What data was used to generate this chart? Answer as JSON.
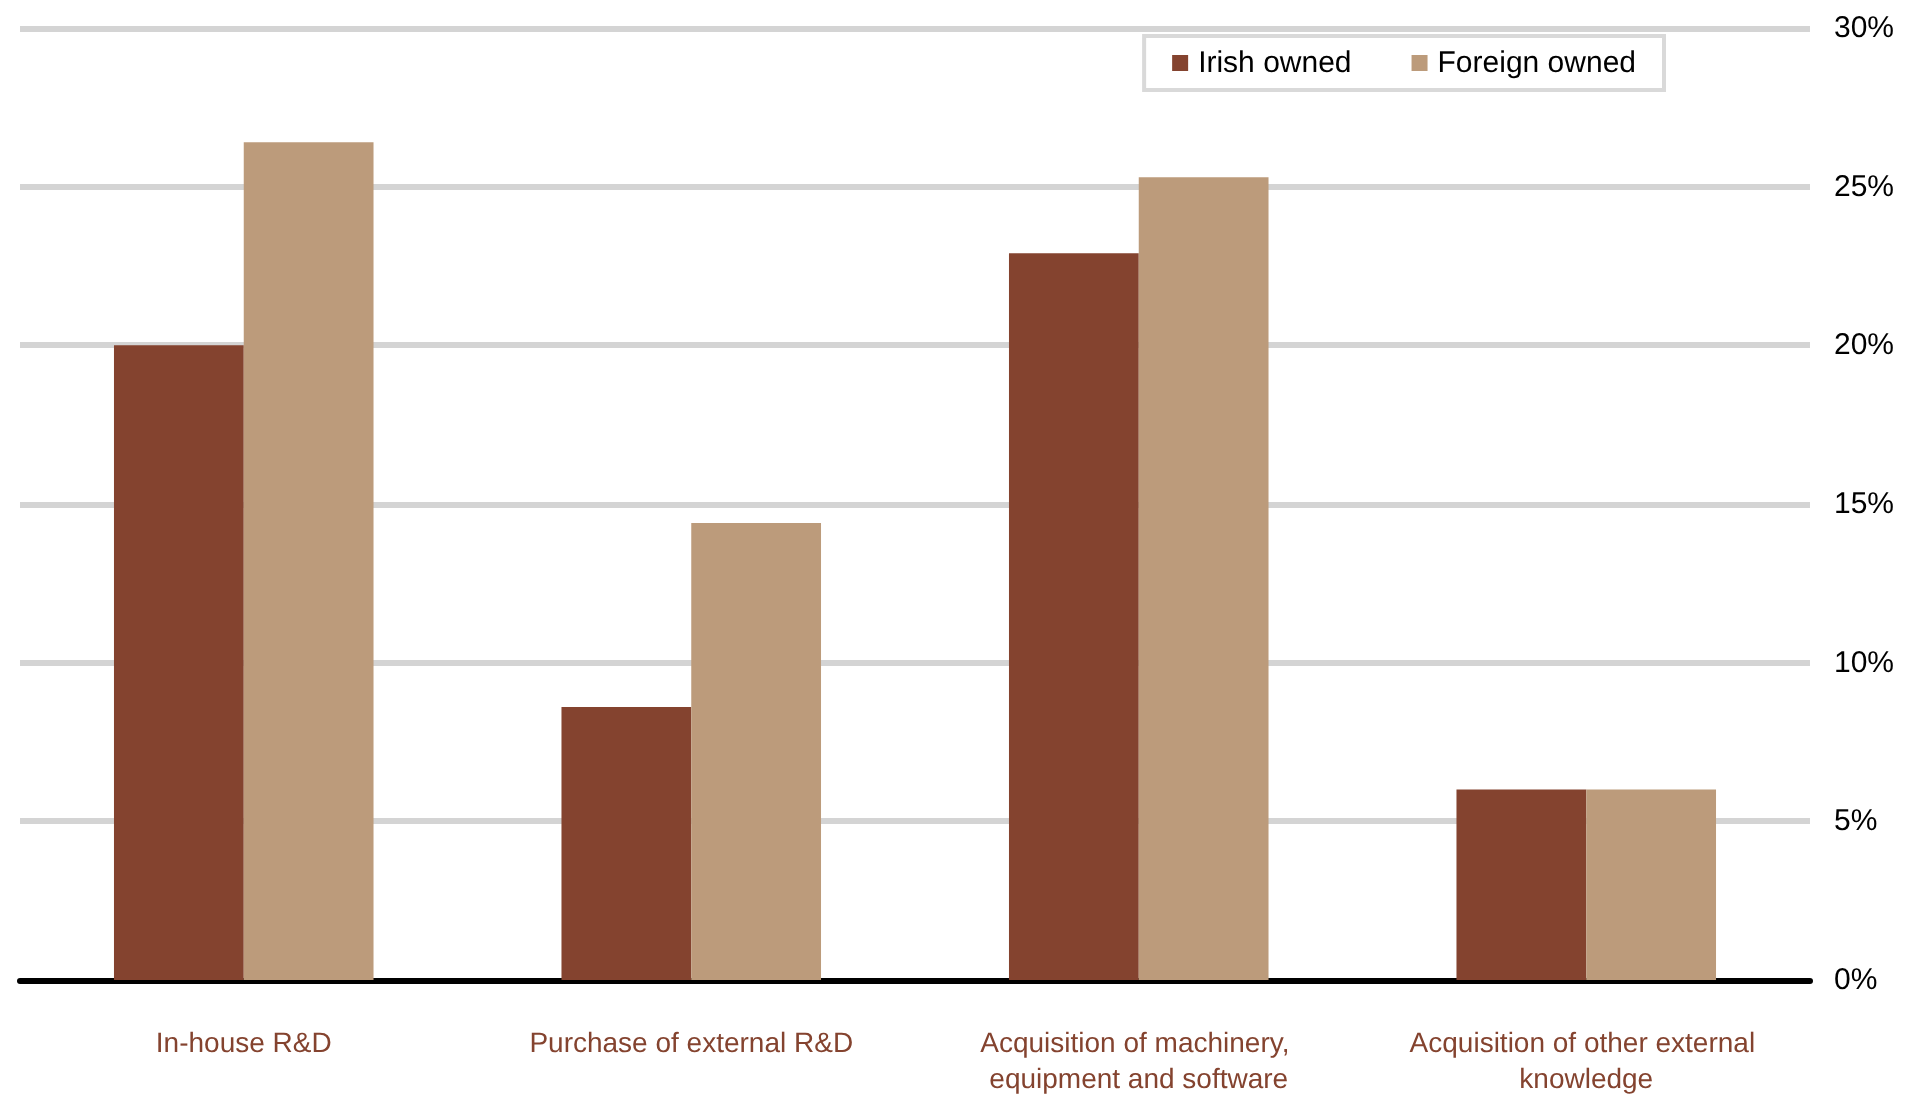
{
  "chart_data": {
    "type": "bar",
    "categories": [
      "In-house R&D",
      "Purchase of external R&D",
      "Acquisition of machinery, equipment and software",
      "Acquisition of other external knowledge"
    ],
    "series": [
      {
        "name": "Irish owned",
        "color": "#84432f",
        "values": [
          20,
          8.6,
          22.9,
          6.0
        ]
      },
      {
        "name": "Foreign owned",
        "color": "#bc9b7b",
        "values": [
          26.4,
          14.4,
          25.3,
          6.0
        ]
      }
    ],
    "ylim": [
      0,
      30
    ],
    "yticks": [
      {
        "value": 0,
        "label": "0%"
      },
      {
        "value": 5,
        "label": "5%"
      },
      {
        "value": 10,
        "label": "10%"
      },
      {
        "value": 15,
        "label": "15%"
      },
      {
        "value": 20,
        "label": "20%"
      },
      {
        "value": 25,
        "label": "25%"
      },
      {
        "value": 30,
        "label": "30%"
      }
    ],
    "grid": "y",
    "legend": "top right"
  }
}
